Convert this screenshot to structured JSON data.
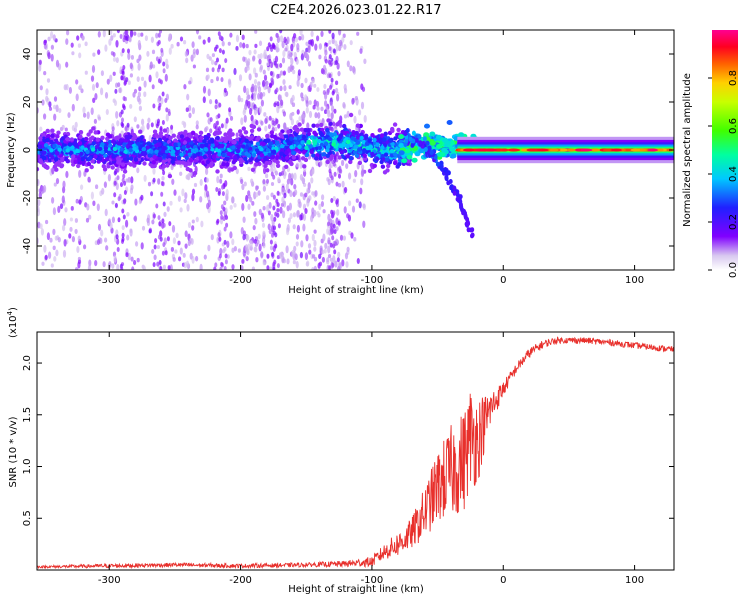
{
  "title": "C2E4.2026.023.01.22.R17",
  "chart_data": [
    {
      "type": "heatmap",
      "title": "C2E4.2026.023.01.22.R17",
      "xlabel": "Height of straight line (km)",
      "ylabel": "Frequency (Hz)",
      "xlim": [
        -355,
        130
      ],
      "ylim": [
        -50,
        50
      ],
      "xticks": [
        -300,
        -200,
        -100,
        0,
        100
      ],
      "yticks": [
        -40,
        -20,
        0,
        20,
        40
      ],
      "colorbar": {
        "label": "Normalized spectral amplitude",
        "range": [
          0.0,
          1.0
        ],
        "ticks": [
          "0.0",
          "0.2",
          "0.4",
          "0.6",
          "0.8"
        ],
        "tick_values": [
          0.0,
          0.2,
          0.4,
          0.6,
          0.8
        ]
      },
      "features": {
        "central_band_freq_hz": 0,
        "band_halfwidth_hz": 4,
        "scatter_background": "purple speckle from -355 to -100 km, up to +/-50 Hz",
        "diverging_branch": {
          "start_km": -75,
          "end_km": -22,
          "start_hz": 5,
          "end_hz": -38
        }
      }
    },
    {
      "type": "line",
      "title": "",
      "xlabel": "Height of straight line (km)",
      "ylabel": "SNR (10 * v/v)",
      "y_multiplier": "(x10",
      "y_multiplier_exp": "4",
      "xlim": [
        -355,
        130
      ],
      "ylim": [
        0,
        2.3
      ],
      "xticks": [
        -300,
        -200,
        -100,
        0,
        100
      ],
      "yticks": [
        0.5,
        1.0,
        1.5,
        2.0
      ],
      "ytick_labels": [
        "0.5",
        "1.0",
        "1.5",
        "2.0"
      ],
      "series": [
        {
          "name": "SNR",
          "color": "#e8302c",
          "x": [
            -355,
            -300,
            -250,
            -200,
            -150,
            -120,
            -100,
            -90,
            -80,
            -70,
            -60,
            -50,
            -40,
            -30,
            -25,
            -20,
            -15,
            -10,
            -5,
            0,
            5,
            10,
            20,
            30,
            40,
            60,
            80,
            100,
            130
          ],
          "y": [
            0.03,
            0.04,
            0.05,
            0.04,
            0.05,
            0.06,
            0.08,
            0.18,
            0.25,
            0.35,
            0.55,
            0.8,
            0.95,
            1.05,
            1.3,
            1.25,
            1.4,
            1.55,
            1.65,
            1.75,
            1.85,
            1.95,
            2.1,
            2.18,
            2.22,
            2.22,
            2.2,
            2.17,
            2.13
          ],
          "noise": [
            0.01,
            0.02,
            0.02,
            0.02,
            0.02,
            0.03,
            0.05,
            0.08,
            0.12,
            0.15,
            0.25,
            0.35,
            0.45,
            0.5,
            0.5,
            0.45,
            0.3,
            0.2,
            0.12,
            0.08,
            0.06,
            0.05,
            0.05,
            0.04,
            0.03,
            0.03,
            0.03,
            0.03,
            0.03
          ]
        }
      ]
    }
  ]
}
